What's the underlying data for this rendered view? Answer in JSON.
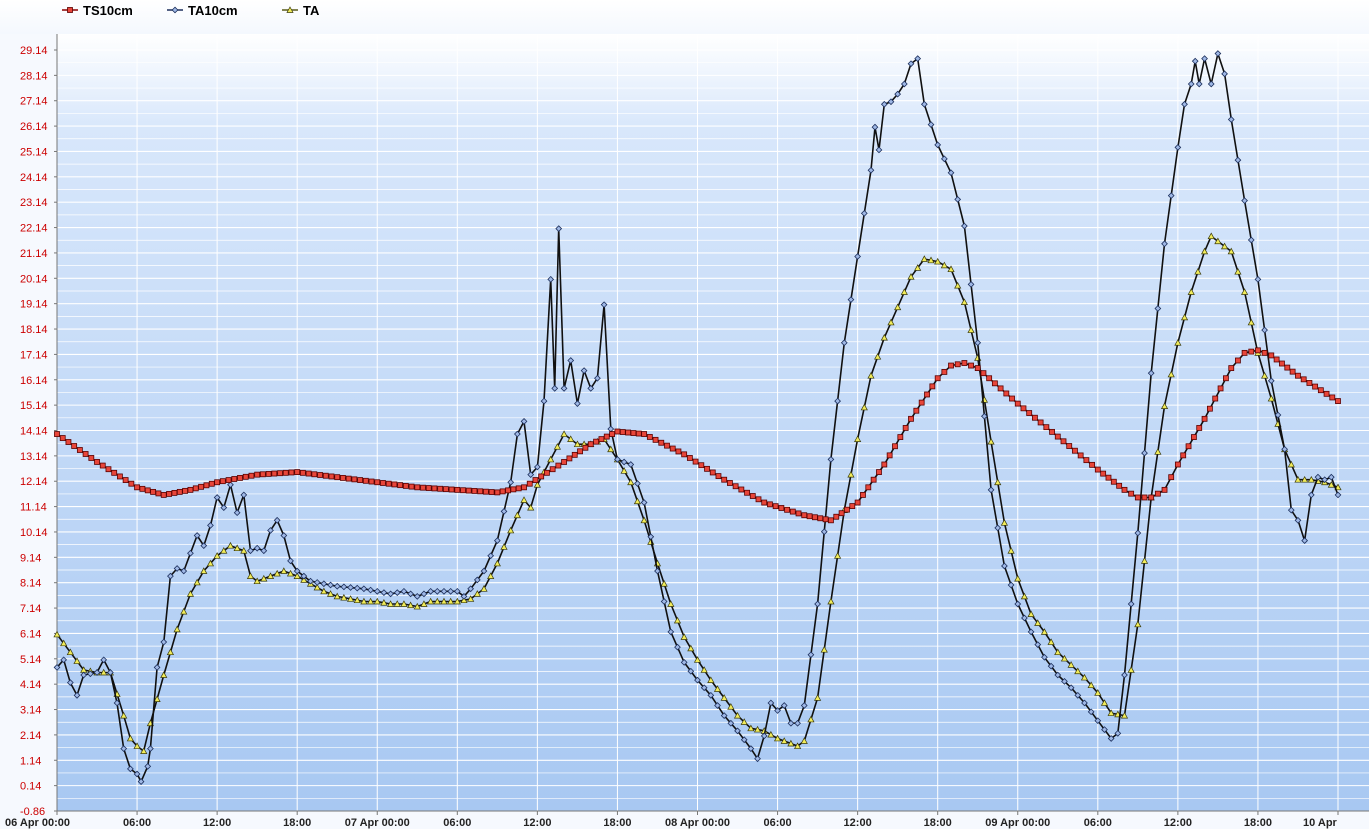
{
  "chart_data": {
    "type": "line",
    "legend": [
      "TS10cm",
      "TA10cm",
      "TA"
    ],
    "legend_position": "top-left",
    "grid": true,
    "x_unit": "hours since 06 Apr 00:00",
    "xlim": [
      0,
      96
    ],
    "ylim": [
      -0.86,
      30.5
    ],
    "y_ticks": [
      "-0.86",
      "0.14",
      "1.14",
      "2.14",
      "3.14",
      "4.14",
      "5.14",
      "6.14",
      "7.14",
      "8.14",
      "9.14",
      "10.14",
      "11.14",
      "12.14",
      "13.14",
      "14.14",
      "15.14",
      "16.14",
      "17.14",
      "18.14",
      "19.14",
      "20.14",
      "21.14",
      "22.14",
      "23.14",
      "24.14",
      "25.14",
      "26.14",
      "27.14",
      "28.14",
      "29.14"
    ],
    "x_ticks": [
      {
        "x": 0,
        "label": "06 Apr 00:00"
      },
      {
        "x": 6,
        "label": "06:00"
      },
      {
        "x": 12,
        "label": "12:00"
      },
      {
        "x": 18,
        "label": "18:00"
      },
      {
        "x": 24,
        "label": "07 Apr 00:00"
      },
      {
        "x": 30,
        "label": "06:00"
      },
      {
        "x": 36,
        "label": "12:00"
      },
      {
        "x": 42,
        "label": "18:00"
      },
      {
        "x": 48,
        "label": "08 Apr 00:00"
      },
      {
        "x": 54,
        "label": "06:00"
      },
      {
        "x": 60,
        "label": "12:00"
      },
      {
        "x": 66,
        "label": "18:00"
      },
      {
        "x": 72,
        "label": "09 Apr 00:00"
      },
      {
        "x": 78,
        "label": "06:00"
      },
      {
        "x": 84,
        "label": "12:00"
      },
      {
        "x": 90,
        "label": "18:00"
      },
      {
        "x": 96,
        "label": "10 Apr"
      }
    ],
    "series": [
      {
        "name": "TS10cm",
        "color": "#8b0000",
        "marker": "square",
        "points": [
          [
            0,
            14.0
          ],
          [
            3,
            12.9
          ],
          [
            6,
            11.9
          ],
          [
            8,
            11.6
          ],
          [
            10,
            11.8
          ],
          [
            12,
            12.1
          ],
          [
            15,
            12.4
          ],
          [
            18,
            12.5
          ],
          [
            21,
            12.3
          ],
          [
            24,
            12.1
          ],
          [
            27,
            11.9
          ],
          [
            30,
            11.8
          ],
          [
            33,
            11.7
          ],
          [
            35,
            11.9
          ],
          [
            38,
            12.9
          ],
          [
            40,
            13.6
          ],
          [
            42,
            14.1
          ],
          [
            44,
            14.0
          ],
          [
            47,
            13.2
          ],
          [
            50,
            12.2
          ],
          [
            53,
            11.3
          ],
          [
            56,
            10.8
          ],
          [
            58,
            10.6
          ],
          [
            60,
            11.3
          ],
          [
            62,
            12.8
          ],
          [
            64,
            14.6
          ],
          [
            66,
            16.2
          ],
          [
            67,
            16.7
          ],
          [
            68,
            16.8
          ],
          [
            69,
            16.6
          ],
          [
            72,
            15.2
          ],
          [
            75,
            13.9
          ],
          [
            78,
            12.6
          ],
          [
            80,
            11.8
          ],
          [
            81,
            11.5
          ],
          [
            82,
            11.5
          ],
          [
            83,
            11.8
          ],
          [
            84,
            12.8
          ],
          [
            86,
            14.6
          ],
          [
            88,
            16.6
          ],
          [
            89,
            17.2
          ],
          [
            90,
            17.3
          ],
          [
            91,
            17.1
          ],
          [
            93,
            16.3
          ],
          [
            96,
            15.3
          ]
        ]
      },
      {
        "name": "TA10cm",
        "color": "#1c2f5c",
        "marker": "diamond",
        "points": [
          [
            0,
            4.8
          ],
          [
            0.5,
            5.1
          ],
          [
            1,
            4.2
          ],
          [
            1.5,
            3.7
          ],
          [
            2,
            4.5
          ],
          [
            3,
            4.6
          ],
          [
            3.5,
            5.1
          ],
          [
            4,
            4.6
          ],
          [
            4.5,
            3.4
          ],
          [
            5,
            1.6
          ],
          [
            5.5,
            0.8
          ],
          [
            6,
            0.6
          ],
          [
            6.3,
            0.3
          ],
          [
            6.8,
            0.9
          ],
          [
            7,
            1.6
          ],
          [
            7.5,
            4.8
          ],
          [
            8,
            5.8
          ],
          [
            8.5,
            8.4
          ],
          [
            9,
            8.7
          ],
          [
            9.5,
            8.6
          ],
          [
            10,
            9.3
          ],
          [
            10.5,
            10.0
          ],
          [
            11,
            9.6
          ],
          [
            11.5,
            10.4
          ],
          [
            12,
            11.5
          ],
          [
            12.5,
            11.1
          ],
          [
            13,
            12.0
          ],
          [
            13.5,
            10.9
          ],
          [
            14,
            11.6
          ],
          [
            14.5,
            9.4
          ],
          [
            15,
            9.5
          ],
          [
            15.5,
            9.4
          ],
          [
            16,
            10.2
          ],
          [
            16.5,
            10.6
          ],
          [
            17,
            10.0
          ],
          [
            17.5,
            9.0
          ],
          [
            18,
            8.6
          ],
          [
            19,
            8.2
          ],
          [
            21,
            8.0
          ],
          [
            23,
            7.9
          ],
          [
            25,
            7.7
          ],
          [
            26,
            7.8
          ],
          [
            27,
            7.6
          ],
          [
            28,
            7.8
          ],
          [
            29,
            7.8
          ],
          [
            30,
            7.8
          ],
          [
            30.5,
            7.6
          ],
          [
            31,
            7.9
          ],
          [
            32,
            8.6
          ],
          [
            33,
            9.8
          ],
          [
            34,
            12.1
          ],
          [
            34.5,
            14.0
          ],
          [
            35,
            14.5
          ],
          [
            35.5,
            12.4
          ],
          [
            36,
            12.7
          ],
          [
            36.5,
            15.3
          ],
          [
            37,
            20.1
          ],
          [
            37.3,
            15.8
          ],
          [
            37.6,
            22.1
          ],
          [
            38,
            15.8
          ],
          [
            38.5,
            16.9
          ],
          [
            39,
            15.2
          ],
          [
            39.5,
            16.5
          ],
          [
            40,
            15.8
          ],
          [
            40.5,
            16.2
          ],
          [
            41,
            19.1
          ],
          [
            41.5,
            14.2
          ],
          [
            42,
            13.0
          ],
          [
            43,
            12.8
          ],
          [
            44,
            11.3
          ],
          [
            45,
            8.6
          ],
          [
            46,
            6.2
          ],
          [
            47,
            5.0
          ],
          [
            48,
            4.3
          ],
          [
            49,
            3.7
          ],
          [
            50,
            2.9
          ],
          [
            51,
            2.3
          ],
          [
            52,
            1.6
          ],
          [
            52.5,
            1.2
          ],
          [
            53,
            2.1
          ],
          [
            53.5,
            3.4
          ],
          [
            54,
            3.1
          ],
          [
            54.5,
            3.3
          ],
          [
            55,
            2.6
          ],
          [
            55.5,
            2.6
          ],
          [
            56,
            3.3
          ],
          [
            57,
            7.3
          ],
          [
            58,
            13.0
          ],
          [
            59,
            17.6
          ],
          [
            60,
            21.0
          ],
          [
            61,
            24.4
          ],
          [
            61.3,
            26.1
          ],
          [
            61.6,
            25.2
          ],
          [
            62,
            27.0
          ],
          [
            62.5,
            27.1
          ],
          [
            63,
            27.4
          ],
          [
            63.5,
            27.8
          ],
          [
            64,
            28.6
          ],
          [
            64.5,
            28.8
          ],
          [
            65,
            27.0
          ],
          [
            66,
            25.4
          ],
          [
            67,
            24.3
          ],
          [
            68,
            22.2
          ],
          [
            69,
            17.6
          ],
          [
            70,
            11.8
          ],
          [
            71,
            8.8
          ],
          [
            72,
            7.3
          ],
          [
            73,
            6.2
          ],
          [
            74,
            5.2
          ],
          [
            75,
            4.5
          ],
          [
            76,
            4.0
          ],
          [
            77,
            3.4
          ],
          [
            78,
            2.7
          ],
          [
            79,
            2.0
          ],
          [
            79.5,
            2.2
          ],
          [
            80,
            4.5
          ],
          [
            81,
            10.1
          ],
          [
            82,
            16.4
          ],
          [
            83,
            21.5
          ],
          [
            84,
            25.3
          ],
          [
            84.5,
            27.0
          ],
          [
            85,
            27.8
          ],
          [
            85.3,
            28.7
          ],
          [
            85.6,
            27.8
          ],
          [
            86,
            28.8
          ],
          [
            86.5,
            27.8
          ],
          [
            87,
            29.0
          ],
          [
            87.5,
            28.2
          ],
          [
            88,
            26.4
          ],
          [
            89,
            23.2
          ],
          [
            90,
            20.1
          ],
          [
            91,
            16.1
          ],
          [
            92,
            13.4
          ],
          [
            92.5,
            11.0
          ],
          [
            93,
            10.6
          ],
          [
            93.5,
            9.8
          ],
          [
            94,
            11.6
          ],
          [
            94.5,
            12.3
          ],
          [
            95,
            12.2
          ],
          [
            95.5,
            12.3
          ],
          [
            96,
            11.6
          ]
        ]
      },
      {
        "name": "TA",
        "color": "#5a5a18",
        "marker": "triangle",
        "points": [
          [
            0,
            6.1
          ],
          [
            1,
            5.4
          ],
          [
            2,
            4.7
          ],
          [
            3,
            4.6
          ],
          [
            4,
            4.6
          ],
          [
            5,
            2.9
          ],
          [
            5.5,
            2.0
          ],
          [
            6,
            1.7
          ],
          [
            6.5,
            1.5
          ],
          [
            7,
            2.6
          ],
          [
            8,
            4.5
          ],
          [
            9,
            6.3
          ],
          [
            10,
            7.7
          ],
          [
            11,
            8.6
          ],
          [
            12,
            9.2
          ],
          [
            13,
            9.6
          ],
          [
            14,
            9.4
          ],
          [
            14.5,
            8.4
          ],
          [
            15,
            8.2
          ],
          [
            16,
            8.4
          ],
          [
            17,
            8.6
          ],
          [
            18,
            8.4
          ],
          [
            19,
            8.1
          ],
          [
            20,
            7.8
          ],
          [
            21,
            7.6
          ],
          [
            22,
            7.5
          ],
          [
            23,
            7.4
          ],
          [
            24,
            7.4
          ],
          [
            25,
            7.3
          ],
          [
            26,
            7.3
          ],
          [
            27,
            7.2
          ],
          [
            28,
            7.4
          ],
          [
            29,
            7.4
          ],
          [
            30,
            7.4
          ],
          [
            31,
            7.5
          ],
          [
            32,
            7.9
          ],
          [
            33,
            8.9
          ],
          [
            34,
            10.2
          ],
          [
            35,
            11.4
          ],
          [
            35.5,
            11.1
          ],
          [
            36,
            12.0
          ],
          [
            37,
            13.0
          ],
          [
            38,
            14.0
          ],
          [
            39,
            13.6
          ],
          [
            40,
            13.6
          ],
          [
            41,
            13.8
          ],
          [
            42,
            13.0
          ],
          [
            43,
            12.1
          ],
          [
            44,
            10.6
          ],
          [
            45,
            8.9
          ],
          [
            46,
            7.3
          ],
          [
            47,
            6.0
          ],
          [
            48,
            5.1
          ],
          [
            49,
            4.3
          ],
          [
            50,
            3.6
          ],
          [
            51,
            2.9
          ],
          [
            52,
            2.4
          ],
          [
            53,
            2.3
          ],
          [
            54,
            2.0
          ],
          [
            55,
            1.8
          ],
          [
            55.5,
            1.7
          ],
          [
            56,
            1.9
          ],
          [
            57,
            3.6
          ],
          [
            58,
            7.4
          ],
          [
            59,
            11.0
          ],
          [
            60,
            13.8
          ],
          [
            61,
            16.3
          ],
          [
            62,
            17.8
          ],
          [
            63,
            19.0
          ],
          [
            64,
            20.2
          ],
          [
            65,
            20.9
          ],
          [
            66,
            20.8
          ],
          [
            67,
            20.5
          ],
          [
            68,
            19.2
          ],
          [
            69,
            17.0
          ],
          [
            70,
            13.7
          ],
          [
            71,
            10.5
          ],
          [
            72,
            8.3
          ],
          [
            73,
            6.9
          ],
          [
            74,
            6.2
          ],
          [
            75,
            5.4
          ],
          [
            76,
            4.9
          ],
          [
            77,
            4.4
          ],
          [
            78,
            3.8
          ],
          [
            79,
            3.0
          ],
          [
            80,
            2.9
          ],
          [
            81,
            6.5
          ],
          [
            82,
            11.5
          ],
          [
            83,
            15.1
          ],
          [
            84,
            17.6
          ],
          [
            85,
            19.6
          ],
          [
            86,
            21.2
          ],
          [
            86.5,
            21.8
          ],
          [
            87,
            21.6
          ],
          [
            88,
            21.2
          ],
          [
            89,
            19.6
          ],
          [
            90,
            17.2
          ],
          [
            91,
            15.4
          ],
          [
            92,
            13.4
          ],
          [
            93,
            12.2
          ],
          [
            94,
            12.2
          ],
          [
            95,
            12.1
          ],
          [
            96,
            11.9
          ]
        ]
      }
    ]
  }
}
